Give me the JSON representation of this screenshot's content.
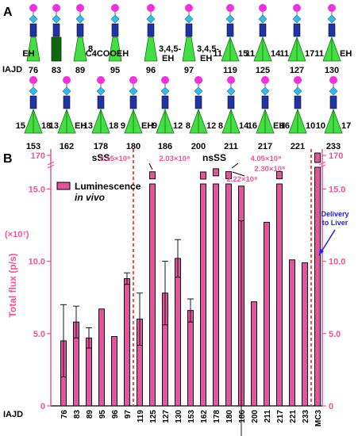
{
  "panel_a": {
    "label": "A",
    "row_prefix": "IAJD",
    "row1": [
      {
        "id": "76",
        "tails": [
          {
            "text": "EH",
            "pos": "c"
          }
        ],
        "shape": "cone"
      },
      {
        "id": "83",
        "tails": [],
        "shape": "rect-dark"
      },
      {
        "id": "89",
        "tails": [
          {
            "text": "8",
            "pos": "r"
          }
        ],
        "shape": "cone"
      },
      {
        "id": "95",
        "tails": [
          {
            "text": "C4COOEH",
            "pos": "c"
          }
        ],
        "shape": "cone"
      },
      {
        "id": "96",
        "tails": [
          {
            "text": "3,4,5-",
            "pos": "r"
          },
          {
            "text": "EH",
            "pos": "r2"
          }
        ],
        "shape": "cone"
      },
      {
        "id": "97",
        "tails": [
          {
            "text": "3,4,5-",
            "pos": "r"
          },
          {
            "text": "EH",
            "pos": "r2"
          }
        ],
        "shape": "cone"
      },
      {
        "id": "119",
        "tails": [
          {
            "text": "11",
            "pos": "l"
          },
          {
            "text": "15",
            "pos": "r"
          }
        ],
        "shape": "double"
      },
      {
        "id": "125",
        "tails": [
          {
            "text": "11",
            "pos": "l"
          },
          {
            "text": "14",
            "pos": "r"
          }
        ],
        "shape": "double"
      },
      {
        "id": "127",
        "tails": [
          {
            "text": "11",
            "pos": "l"
          },
          {
            "text": "17",
            "pos": "r"
          }
        ],
        "shape": "double"
      },
      {
        "id": "130",
        "tails": [
          {
            "text": "11",
            "pos": "l"
          },
          {
            "text": "EH",
            "pos": "r"
          }
        ],
        "shape": "double"
      }
    ],
    "row2": [
      {
        "id": "153",
        "tails": [
          {
            "text": "15",
            "pos": "l"
          },
          {
            "text": "18",
            "pos": "r"
          }
        ],
        "shape": "double"
      },
      {
        "id": "162",
        "tails": [
          {
            "text": "13",
            "pos": "l"
          },
          {
            "text": "EH",
            "pos": "r"
          }
        ],
        "shape": "double"
      },
      {
        "id": "178",
        "tails": [
          {
            "text": "13",
            "pos": "l"
          },
          {
            "text": "18",
            "pos": "r"
          }
        ],
        "shape": "double"
      },
      {
        "id": "180",
        "tails": [
          {
            "text": "9",
            "pos": "l"
          },
          {
            "text": "EH",
            "pos": "r"
          }
        ],
        "shape": "double"
      },
      {
        "id": "186",
        "tails": [
          {
            "text": "9",
            "pos": "l"
          },
          {
            "text": "12",
            "pos": "r"
          }
        ],
        "shape": "double"
      },
      {
        "id": "200",
        "tails": [
          {
            "text": "8",
            "pos": "l"
          },
          {
            "text": "12",
            "pos": "r"
          }
        ],
        "shape": "double"
      },
      {
        "id": "211",
        "tails": [
          {
            "text": "8",
            "pos": "l"
          },
          {
            "text": "14",
            "pos": "r"
          }
        ],
        "shape": "double"
      },
      {
        "id": "217",
        "tails": [
          {
            "text": "16",
            "pos": "l"
          },
          {
            "text": "EH",
            "pos": "r"
          }
        ],
        "shape": "double"
      },
      {
        "id": "221",
        "tails": [
          {
            "text": "16",
            "pos": "l"
          },
          {
            "text": "10",
            "pos": "r"
          }
        ],
        "shape": "double"
      },
      {
        "id": "233",
        "tails": [
          {
            "text": "10",
            "pos": "l"
          },
          {
            "text": "17",
            "pos": "r"
          }
        ],
        "shape": "double"
      }
    ],
    "colors": {
      "head": "#ee33dd",
      "linker": "#33bbee",
      "body": "#2233aa",
      "cone": "#44dd44",
      "cone_edge": "#117711",
      "dark": "#116611"
    }
  },
  "panel_b": {
    "label": "B",
    "group_sss": "sSS",
    "group_nsss": "nsSS",
    "legend": {
      "line1": "Luminescence",
      "line2": "in vivo"
    },
    "ylabel": "Total flux (p/s)",
    "yunit": "(×10⁷)",
    "xprefix": "IAJD",
    "delivery_note": [
      "Delivery",
      "to Liver"
    ],
    "ticks_left": [
      "0",
      "5.0",
      "10.0",
      "15.0",
      "170"
    ],
    "ticks_right": [
      "0",
      "5.0",
      "10.0",
      "15.0",
      "170"
    ],
    "annotations": [
      "2.15×10⁸",
      "2.03×10⁸",
      "4.05×10⁸",
      "2.30×10⁸",
      "2.22×10⁸"
    ],
    "colors": {
      "bar": "#e0569a",
      "axis": "#ee5599",
      "divider": "#ee2222",
      "note": "#2222ee"
    }
  },
  "chart_data": {
    "type": "bar",
    "xlabel": "IAJD",
    "ylabel": "Total flux (p/s) (×10⁷)",
    "categories": [
      "76",
      "83",
      "89",
      "95",
      "96",
      "97",
      "119",
      "125",
      "127",
      "130",
      "153",
      "162",
      "178",
      "180",
      "186",
      "200",
      "211",
      "217",
      "221",
      "233",
      "MC3"
    ],
    "values": [
      4.5,
      5.8,
      4.7,
      6.7,
      4.8,
      8.8,
      6.0,
      21.5,
      7.8,
      10.2,
      6.6,
      20.3,
      40.5,
      23.0,
      15.2,
      7.2,
      12.7,
      22.2,
      10.1,
      9.9,
      170
    ],
    "errors": [
      2.5,
      1.1,
      0.7,
      null,
      null,
      0.4,
      1.8,
      null,
      2.2,
      1.3,
      0.8,
      null,
      null,
      null,
      2.4,
      null,
      null,
      null,
      null,
      null,
      null
    ],
    "groups": [
      {
        "name": "sSS",
        "from": "76",
        "to": "97"
      },
      {
        "name": "nsSS",
        "from": "119",
        "to": "233"
      }
    ],
    "axis_break": [
      17.5,
      165
    ],
    "ylim": [
      0,
      172
    ],
    "grid": false
  }
}
